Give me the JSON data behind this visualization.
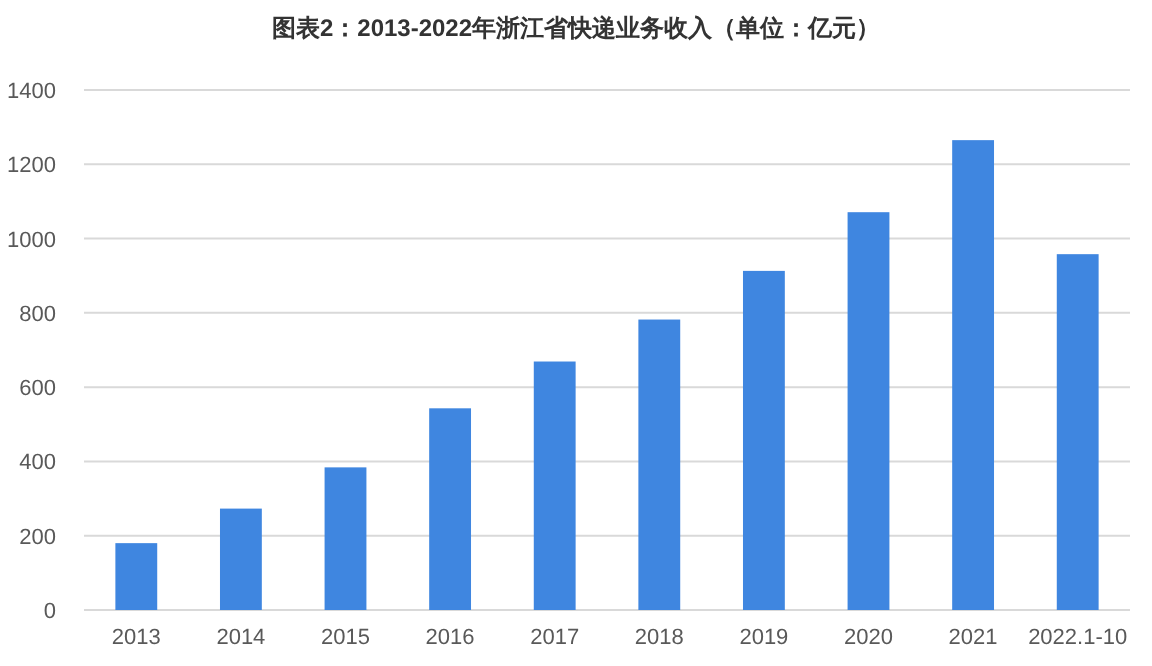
{
  "chart_data": {
    "type": "bar",
    "title": "图表2：2013-2022年浙江省快递业务收入（单位：亿元）",
    "categories": [
      "2013",
      "2014",
      "2015",
      "2016",
      "2017",
      "2018",
      "2019",
      "2020",
      "2021",
      "2022.1-10"
    ],
    "values": [
      180,
      273,
      384,
      543,
      669,
      782,
      913,
      1071,
      1265,
      958
    ],
    "color": "#3f86e0",
    "ylim": [
      0,
      1400
    ],
    "yticks": [
      0,
      200,
      400,
      600,
      800,
      1000,
      1200,
      1400
    ],
    "grid": "y"
  }
}
